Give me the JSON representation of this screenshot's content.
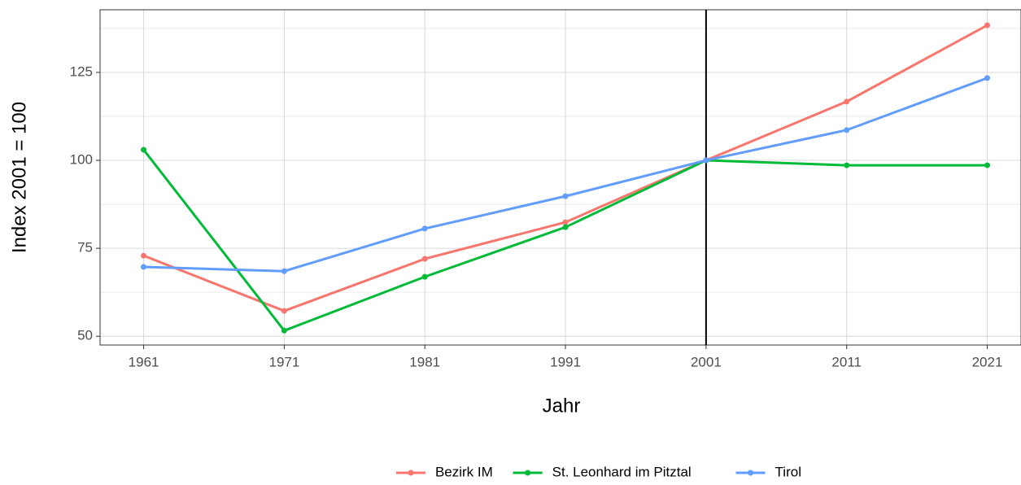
{
  "chart_data": {
    "type": "line",
    "x_label": "Jahr",
    "y_label": "Index 2001 = 100",
    "x": [
      1961,
      1971,
      1981,
      1991,
      2001,
      2011,
      2021
    ],
    "series": [
      {
        "name": "Bezirk IM",
        "color": "#f8766d",
        "values": [
          72.9,
          57.2,
          72.0,
          82.4,
          100,
          116.7,
          138.4
        ]
      },
      {
        "name": "St. Leonhard im Pitztal",
        "color": "#00ba38",
        "values": [
          103.0,
          51.6,
          66.9,
          81.0,
          100,
          98.6,
          98.6
        ]
      },
      {
        "name": "Tirol",
        "color": "#619cff",
        "values": [
          69.7,
          68.5,
          80.6,
          89.8,
          100,
          108.6,
          123.4
        ]
      }
    ],
    "xlim": [
      1957.9,
      2023.4
    ],
    "xticks": [
      1961,
      1971,
      1981,
      1991,
      2001,
      2011,
      2021
    ],
    "ylim": [
      47.5,
      142.8
    ],
    "yticks": [
      50,
      75,
      100,
      125
    ],
    "minor_yticks": [
      62.5,
      87.5,
      112.5,
      137.5
    ],
    "vline": 2001,
    "grid": true,
    "legend": "bottom"
  }
}
